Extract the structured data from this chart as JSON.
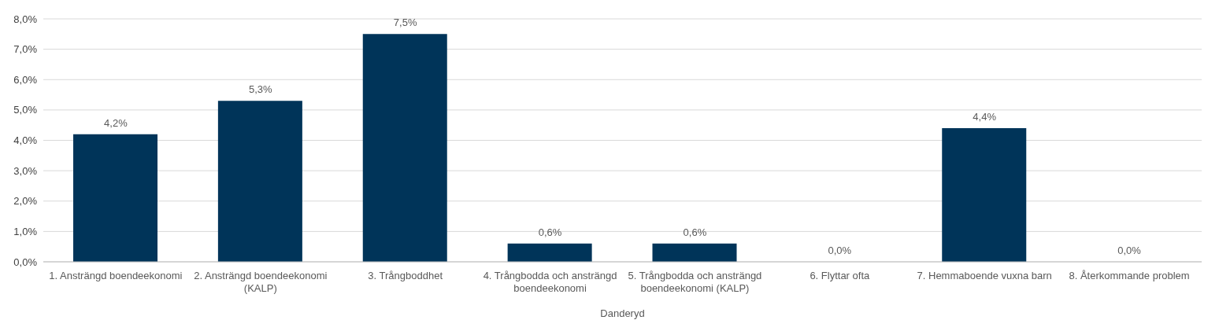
{
  "chart_data": {
    "type": "bar",
    "xlabel": "Danderyd",
    "categories": [
      "1. Ansträngd boendeekonomi",
      "2. Ansträngd boendeekonomi (KALP)",
      "3. Trångboddhet",
      "4. Trångbodda och ansträngd boendeekonomi",
      "5. Trångbodda och ansträngd boendeekonomi (KALP)",
      "6. Flyttar ofta",
      "7. Hemmaboende vuxna barn",
      "8. Återkommande problem"
    ],
    "values": [
      4.2,
      5.3,
      7.5,
      0.6,
      0.6,
      0.0,
      4.4,
      0.0
    ],
    "value_labels": [
      "4,2%",
      "5,3%",
      "7,5%",
      "0,6%",
      "0,6%",
      "0,0%",
      "4,4%",
      "0,0%"
    ],
    "color": "#003459",
    "ylim": [
      0,
      8
    ],
    "yticks": [
      {
        "value": 0,
        "label": "0,0%"
      },
      {
        "value": 1,
        "label": "1,0%"
      },
      {
        "value": 2,
        "label": "2,0%"
      },
      {
        "value": 3,
        "label": "3,0%"
      },
      {
        "value": 4,
        "label": "4,0%"
      },
      {
        "value": 5,
        "label": "5,0%"
      },
      {
        "value": 6,
        "label": "6,0%"
      },
      {
        "value": 7,
        "label": "7,0%"
      },
      {
        "value": 8,
        "label": "8,0%"
      }
    ],
    "grid": "y"
  }
}
